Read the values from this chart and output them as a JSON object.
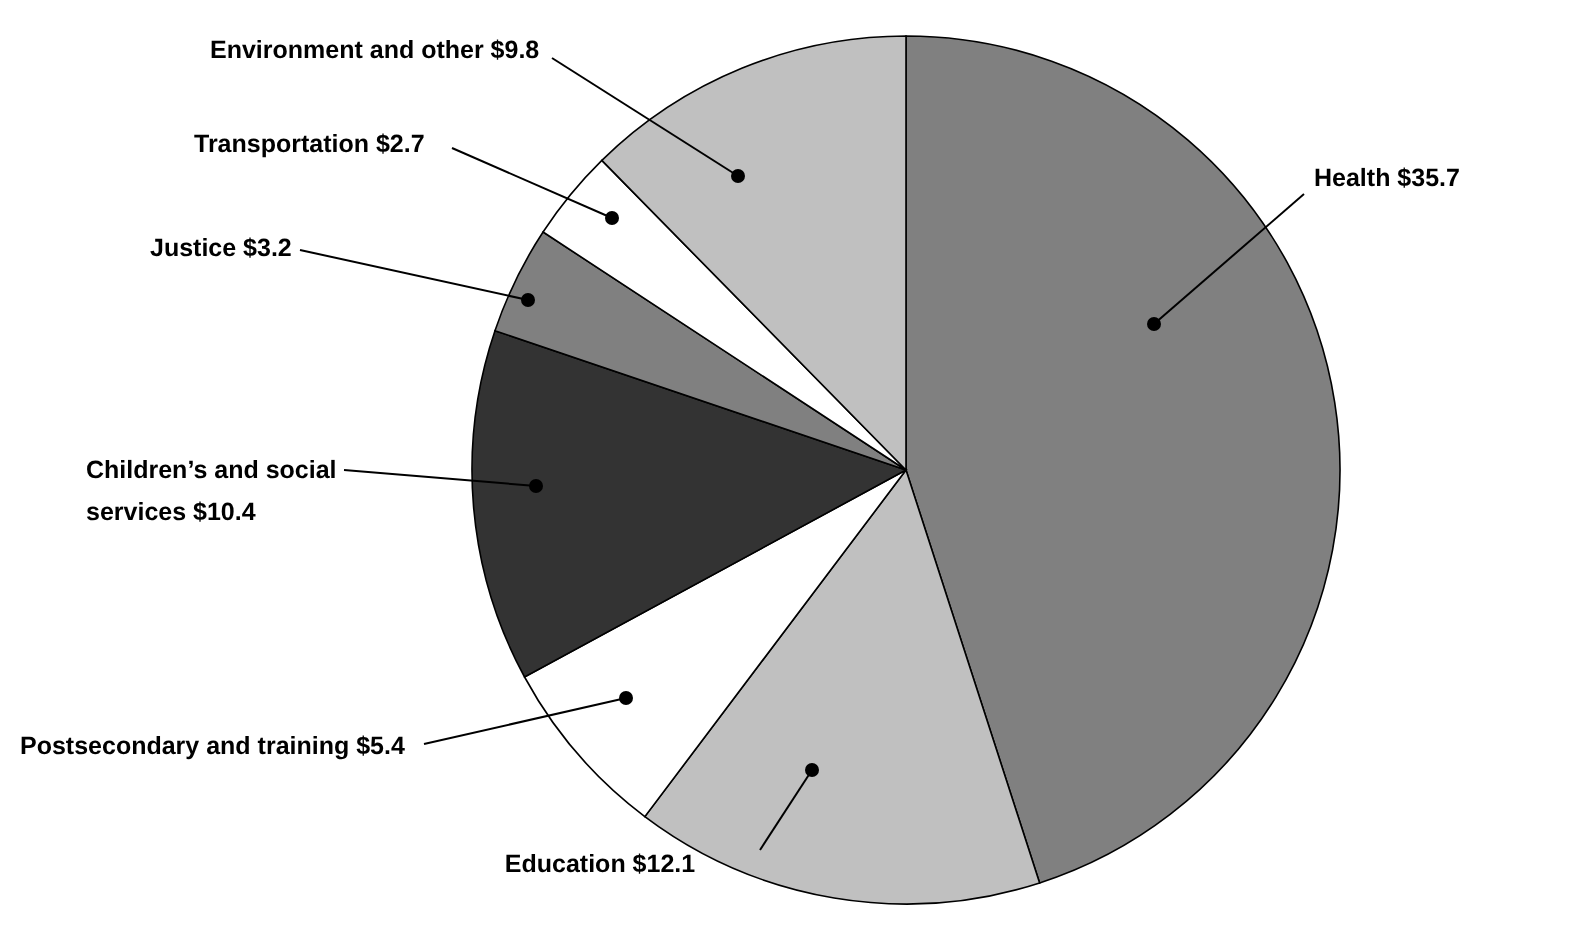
{
  "chart_data": {
    "type": "pie",
    "categories": [
      "Health",
      "Education",
      "Postsecondary and training",
      "Children’s and social services",
      "Justice",
      "Transportation",
      "Environment and other"
    ],
    "values": [
      35.7,
      12.1,
      5.4,
      10.4,
      3.2,
      2.7,
      9.8
    ],
    "value_labels": [
      "$35.7",
      "$12.1",
      "$5.4",
      "$10.4",
      "$3.2",
      "$2.7",
      "$9.8"
    ],
    "colors": [
      "#808080",
      "#c0c0c0",
      "#ffffff",
      "#333333",
      "#808080",
      "#ffffff",
      "#c0c0c0"
    ]
  }
}
